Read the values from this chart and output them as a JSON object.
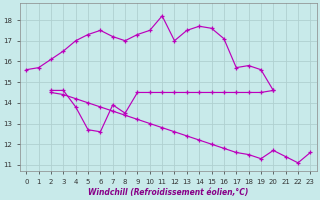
{
  "xlabel": "Windchill (Refroidissement éolien,°C)",
  "background_color": "#c8eaea",
  "grid_color": "#b0d0d0",
  "line_color": "#bb00bb",
  "xlim": [
    -0.5,
    23.5
  ],
  "ylim": [
    10.7,
    18.8
  ],
  "yticks": [
    11,
    12,
    13,
    14,
    15,
    16,
    17,
    18
  ],
  "xticks": [
    0,
    1,
    2,
    3,
    4,
    5,
    6,
    7,
    8,
    9,
    10,
    11,
    12,
    13,
    14,
    15,
    16,
    17,
    18,
    19,
    20,
    21,
    22,
    23
  ],
  "series": [
    {
      "x": [
        0,
        1,
        2,
        3,
        4,
        5,
        6,
        7,
        8,
        9,
        10,
        11,
        12,
        13,
        14,
        15,
        16,
        17,
        18,
        19,
        20
      ],
      "y": [
        15.6,
        15.7,
        16.1,
        16.5,
        17.0,
        17.3,
        17.5,
        17.2,
        17.0,
        17.3,
        17.5,
        18.2,
        17.0,
        17.5,
        17.7,
        17.6,
        17.1,
        15.7,
        15.8,
        15.6,
        14.6
      ]
    },
    {
      "x": [
        2,
        3,
        4,
        5,
        6,
        7,
        8,
        9,
        10,
        11,
        12,
        13,
        14,
        15,
        16,
        17,
        18,
        19,
        20
      ],
      "y": [
        14.6,
        14.6,
        13.8,
        12.7,
        12.6,
        13.9,
        13.5,
        14.5,
        14.5,
        14.5,
        14.5,
        14.5,
        14.5,
        14.5,
        14.5,
        14.5,
        14.5,
        14.5,
        14.6
      ]
    },
    {
      "x": [
        2,
        3,
        4,
        5,
        6,
        7,
        8,
        9,
        10,
        11,
        12,
        13,
        14,
        15,
        16,
        17,
        18,
        19,
        20,
        21,
        22,
        23
      ],
      "y": [
        14.5,
        14.4,
        14.2,
        14.0,
        13.8,
        13.6,
        13.4,
        13.2,
        13.0,
        12.8,
        12.6,
        12.4,
        12.2,
        12.0,
        11.8,
        11.6,
        11.5,
        11.3,
        11.7,
        11.4,
        11.1,
        11.6
      ]
    }
  ]
}
